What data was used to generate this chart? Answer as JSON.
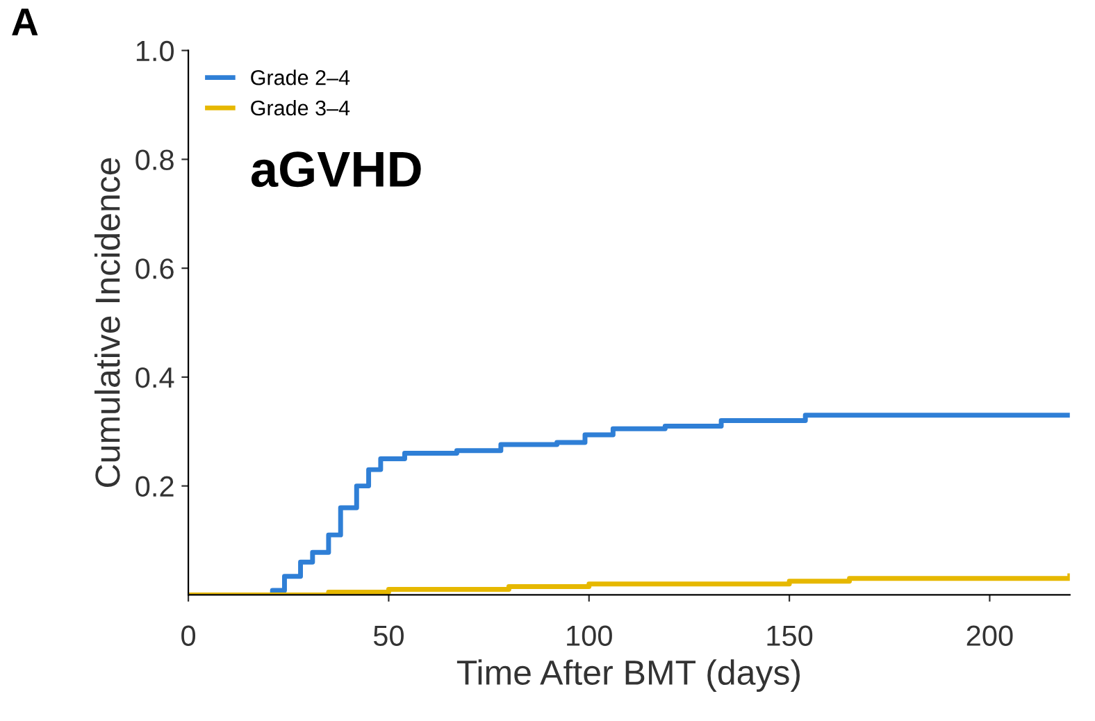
{
  "chart_data": {
    "type": "step",
    "xlabel": "Time After BMT (days)",
    "ylabel": "Cumulative Incidence",
    "annotations": [
      "A",
      "aGVHD"
    ],
    "xlim": [
      0,
      220
    ],
    "ylim": [
      0,
      1.0
    ],
    "xticks": [
      0,
      50,
      100,
      150,
      200
    ],
    "yticks": [
      0.2,
      0.4,
      0.6,
      0.8,
      {
        "value": 1,
        "label": "1.0"
      }
    ],
    "grid": false,
    "legend": "top left",
    "series": [
      {
        "name": "Grade 2–4",
        "color": "#2f7fd6",
        "x": [
          0,
          19,
          21,
          24,
          28,
          31,
          35,
          38,
          42,
          45,
          48,
          54,
          67,
          78,
          92,
          99,
          106,
          119,
          133,
          154,
          220
        ],
        "values": [
          0,
          0,
          0.008,
          0.034,
          0.06,
          0.078,
          0.11,
          0.16,
          0.2,
          0.23,
          0.25,
          0.26,
          0.265,
          0.276,
          0.28,
          0.294,
          0.305,
          0.31,
          0.32,
          0.33,
          0.33
        ]
      },
      {
        "name": "Grade 3–4",
        "color": "#e6b800",
        "x": [
          0,
          15,
          35,
          50,
          80,
          100,
          150,
          165,
          220
        ],
        "values": [
          0,
          0,
          0.005,
          0.01,
          0.015,
          0.02,
          0.025,
          0.03,
          0.035
        ]
      }
    ]
  }
}
